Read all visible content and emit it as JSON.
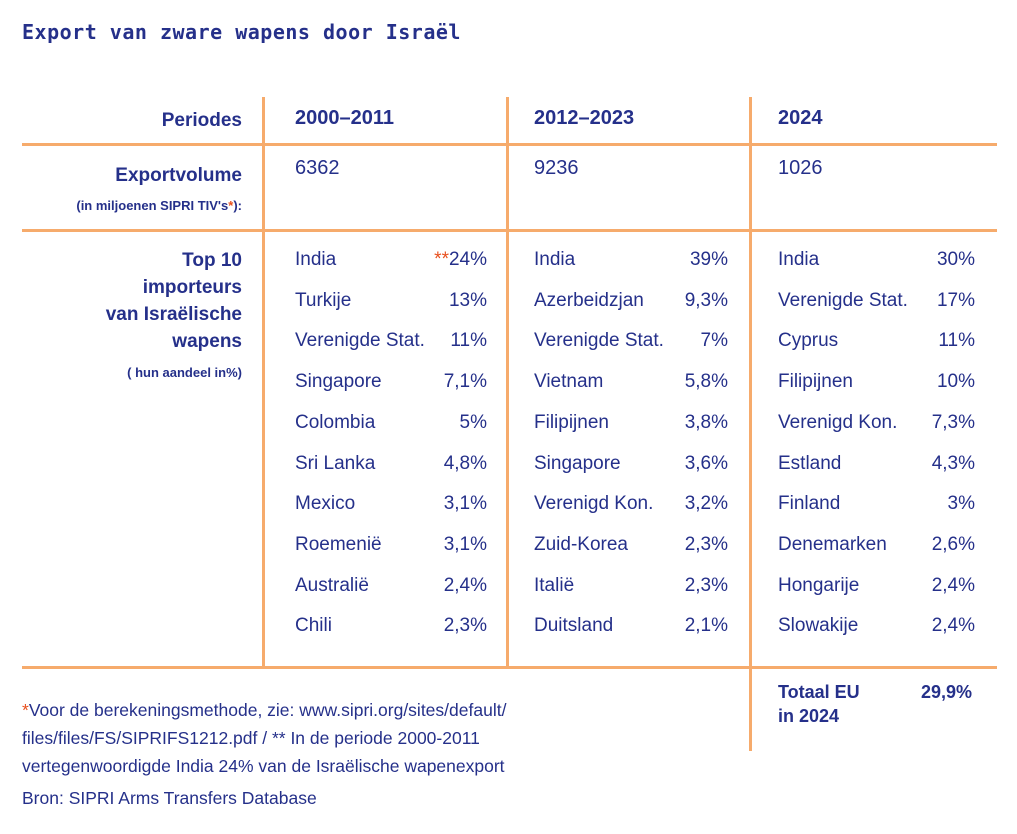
{
  "title": "Export van zware wapens door Israël",
  "labels": {
    "periods": "Periodes",
    "volume": "Exportvolume",
    "volume_unit_pre": "(in miljoenen SIPRI TIV's",
    "volume_unit_star": "*",
    "volume_unit_post": "):",
    "top_lines": [
      "Top 10",
      "importeurs",
      "van Israëlische",
      "wapens"
    ],
    "share_note": "( hun aandeel in%)"
  },
  "columns": [
    {
      "period": "2000–2011",
      "volume": "6362",
      "rows": [
        {
          "country": "India",
          "marker": "**",
          "share": "24%"
        },
        {
          "country": "Turkije",
          "share": "13%"
        },
        {
          "country": "Verenigde Stat.",
          "share": "11%"
        },
        {
          "country": "Singapore",
          "share": "7,1%"
        },
        {
          "country": "Colombia",
          "share": "5%"
        },
        {
          "country": "Sri Lanka",
          "share": "4,8%"
        },
        {
          "country": "Mexico",
          "share": "3,1%"
        },
        {
          "country": "Roemenië",
          "share": "3,1%"
        },
        {
          "country": "Australië",
          "share": "2,4%"
        },
        {
          "country": "Chili",
          "share": "2,3%"
        }
      ]
    },
    {
      "period": "2012–2023",
      "volume": "9236",
      "rows": [
        {
          "country": "India",
          "share": "39%"
        },
        {
          "country": "Azerbeidzjan",
          "share": "9,3%"
        },
        {
          "country": "Verenigde Stat.",
          "share": "7%"
        },
        {
          "country": "Vietnam",
          "share": "5,8%"
        },
        {
          "country": "Filipijnen",
          "share": "3,8%"
        },
        {
          "country": "Singapore",
          "share": "3,6%"
        },
        {
          "country": "Verenigd Kon.",
          "share": "3,2%"
        },
        {
          "country": "Zuid-Korea",
          "share": "2,3%"
        },
        {
          "country": "Italië",
          "share": "2,3%"
        },
        {
          "country": "Duitsland",
          "share": "2,1%"
        }
      ]
    },
    {
      "period": "2024",
      "volume": "1026",
      "rows": [
        {
          "country": "India",
          "share": "30%"
        },
        {
          "country": "Verenigde Stat.",
          "share": "17%"
        },
        {
          "country": "Cyprus",
          "share": "11%"
        },
        {
          "country": "Filipijnen",
          "share": "10%"
        },
        {
          "country": "Verenigd Kon.",
          "share": "7,3%"
        },
        {
          "country": "Estland",
          "share": "4,3%"
        },
        {
          "country": "Finland",
          "share": "3%"
        },
        {
          "country": "Denemarken",
          "share": "2,6%"
        },
        {
          "country": "Hongarije",
          "share": "2,4%"
        },
        {
          "country": "Slowakije",
          "share": "2,4%"
        }
      ]
    }
  ],
  "eu_total": {
    "label_line1": "Totaal EU",
    "label_line2": "in 2024",
    "value": "29,9%"
  },
  "footnote": {
    "star": "*",
    "line1": "Voor de berekeningsmethode, zie: www.sipri.org/sites/default/",
    "line2": "files/files/FS/SIPRIFS1212.pdf / ** In de periode 2000-2011",
    "line3": "vertegenwoordigde India 24% van de Israëlische wapenexport"
  },
  "source": "Bron: SIPRI Arms Transfers Database"
}
